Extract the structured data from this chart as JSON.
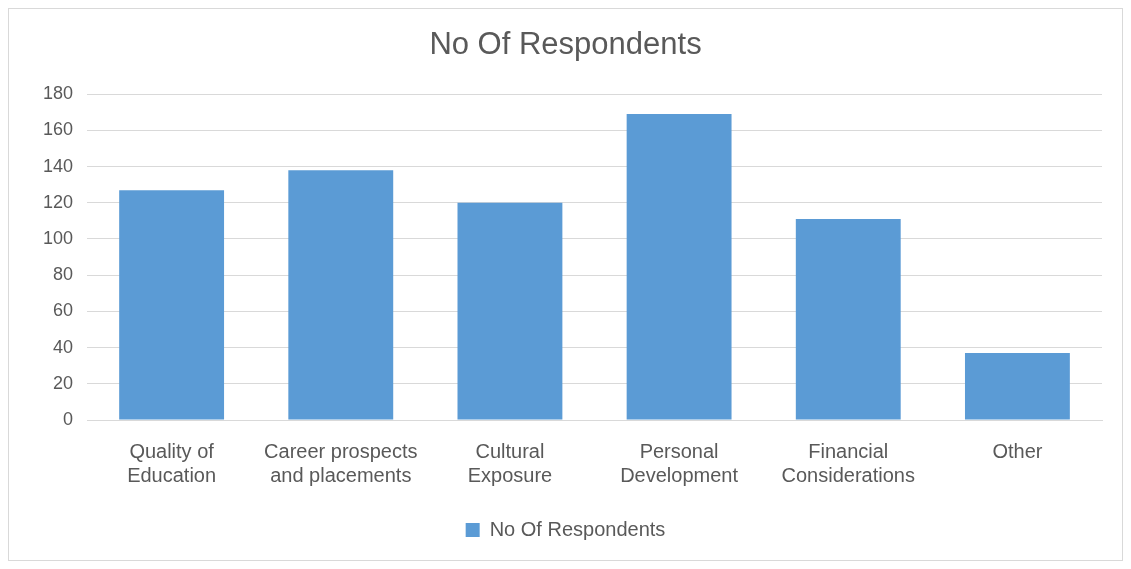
{
  "chart_data": {
    "type": "bar",
    "title": "No Of Respondents",
    "categories": [
      "Quality of Education",
      "Career prospects and placements",
      "Cultural Exposure",
      "Personal Development",
      "Financial Considerations",
      "Other"
    ],
    "series": [
      {
        "name": "No Of Respondents",
        "color": "#5b9bd5",
        "values": [
          127,
          138,
          120,
          169,
          111,
          37
        ]
      }
    ],
    "ylim": [
      0,
      180
    ],
    "yticks": [
      0,
      20,
      40,
      60,
      80,
      100,
      120,
      140,
      160,
      180
    ],
    "grid": "y",
    "legend": "bottom"
  }
}
